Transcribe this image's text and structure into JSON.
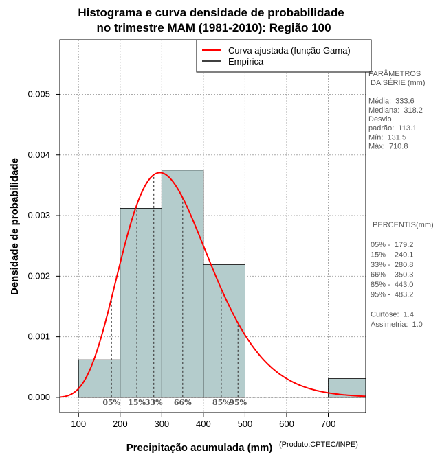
{
  "chart_data": {
    "type": "histogram",
    "title_line1": "Histograma e curva densidade de probabilidade",
    "title_line2": "no trimestre MAM (1981-2010): Região 100",
    "xlabel": "Precipitação acumulada (mm)",
    "ylabel": "Densidade de probabilidade",
    "credit": "(Produto:CPTEC/INPE)",
    "xlim": [
      55,
      790
    ],
    "ylim": [
      -0.00025,
      0.0059
    ],
    "x_ticks": [
      100,
      200,
      300,
      400,
      500,
      600,
      700
    ],
    "y_ticks": [
      0.0,
      0.001,
      0.002,
      0.003,
      0.004,
      0.005
    ],
    "y_tick_labels": [
      "0.000",
      "0.001",
      "0.002",
      "0.003",
      "0.004",
      "0.005"
    ],
    "grid": true,
    "bins": [
      {
        "x0": 100,
        "x1": 200,
        "density": 0.00062
      },
      {
        "x0": 200,
        "x1": 300,
        "density": 0.00312
      },
      {
        "x0": 300,
        "x1": 400,
        "density": 0.00375
      },
      {
        "x0": 400,
        "x1": 500,
        "density": 0.00219
      },
      {
        "x0": 500,
        "x1": 600,
        "density": 0.0
      },
      {
        "x0": 600,
        "x1": 700,
        "density": 0.0
      },
      {
        "x0": 700,
        "x1": 800,
        "density": 0.00031
      }
    ],
    "gamma_fit": {
      "shape": 8.7,
      "scale": 38.35
    },
    "colors": {
      "bar_fill": "#b4cccc",
      "curve": "#ff0000",
      "grid": "#aaaaaa",
      "percentile_line": "#444444",
      "percentile_text": "#555555"
    },
    "legend": {
      "position": "top-right",
      "entries": [
        {
          "label": "Curva ajustada (função Gama)",
          "color": "#ff0000"
        },
        {
          "label": "Empírica",
          "color": "#000000"
        }
      ]
    },
    "percentile_marks": [
      {
        "label": "05%",
        "value": 179.2
      },
      {
        "label": "15%",
        "value": 240.1
      },
      {
        "label": "33%",
        "value": 280.8
      },
      {
        "label": "66%",
        "value": 350.3
      },
      {
        "label": "85%",
        "value": 443.0
      },
      {
        "label": "95%",
        "value": 483.2
      }
    ]
  },
  "side_panel": {
    "params_lines": [
      "PARÂMETROS",
      " DA SÉRIE (mm)",
      "",
      "Média:  333.6",
      "Mediana:  318.2",
      "Desvio",
      "padrão:  113.1",
      "Mín:  131.5",
      "Máx:  710.8"
    ],
    "percentis_lines": [
      " PERCENTIS(mm)",
      "",
      "05% -  179.2",
      "15% -  240.1",
      "33% -  280.8",
      "66% -  350.3",
      "85% -  443.0",
      "95% -  483.2",
      "",
      "Curtose:  1.4",
      "Assimetria:  1.0"
    ]
  }
}
